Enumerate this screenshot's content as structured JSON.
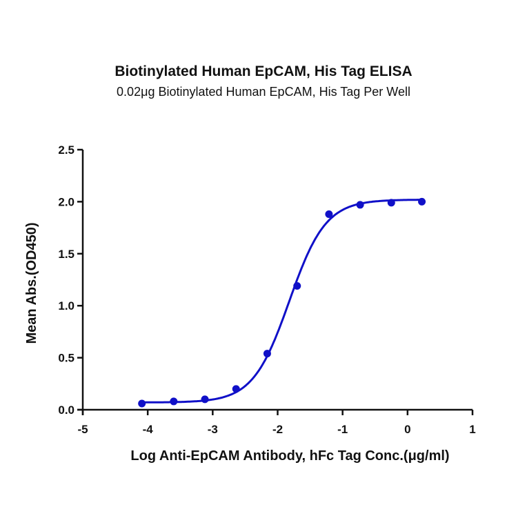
{
  "chart_data": {
    "type": "scatter",
    "title": "Biotinylated Human EpCAM, His Tag ELISA",
    "subtitle": "0.02μg Biotinylated Human EpCAM, His Tag Per Well",
    "xlabel": "Log Anti-EpCAM Antibody, hFc Tag Conc.(μg/ml)",
    "ylabel": "Mean Abs.(OD450)",
    "xlim": [
      -5,
      1
    ],
    "ylim": [
      0,
      2.5
    ],
    "xticks": [
      -5,
      -4,
      -3,
      -2,
      -1,
      0,
      1
    ],
    "yticks": [
      0.0,
      0.5,
      1.0,
      1.5,
      2.0,
      2.5
    ],
    "xtick_labels": [
      "-5",
      "-4",
      "-3",
      "-2",
      "-1",
      "0",
      "1"
    ],
    "ytick_labels": [
      "0.0",
      "0.5",
      "1.0",
      "1.5",
      "2.0",
      "2.5"
    ],
    "grid": false,
    "legend": null,
    "series": [
      {
        "name": "Biotinylated Human EpCAM, His Tag",
        "color": "#1010c8",
        "x": [
          -4.09,
          -3.6,
          -3.12,
          -2.64,
          -2.16,
          -1.7,
          -1.21,
          -0.73,
          -0.25,
          0.22
        ],
        "y": [
          0.06,
          0.08,
          0.1,
          0.2,
          0.54,
          1.19,
          1.88,
          1.97,
          1.99,
          2.0
        ],
        "fit": {
          "model": "4PL",
          "bottom": 0.07,
          "top": 2.02,
          "logEC50": -1.82,
          "hill": 1.55
        }
      }
    ]
  }
}
